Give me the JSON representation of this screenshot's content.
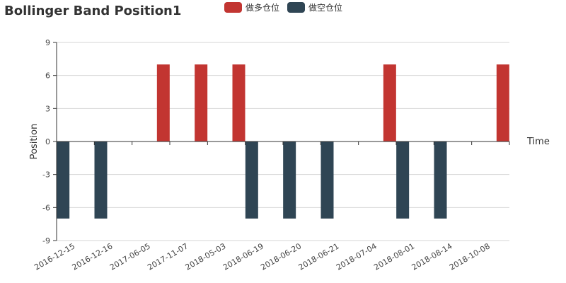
{
  "chart_data": {
    "type": "bar",
    "title": "Bollinger Band Position1",
    "xlabel": "Time",
    "ylabel": "Position",
    "ylim": [
      -9,
      9
    ],
    "yticks": [
      -9,
      -6,
      -3,
      0,
      3,
      6,
      9
    ],
    "grid": true,
    "legend_position": "top-center",
    "categories": [
      "2016-12-15",
      "2016-12-16",
      "2017-06-05",
      "2017-11-07",
      "2018-05-03",
      "2018-06-19",
      "2018-06-20",
      "2018-06-21",
      "2018-07-04",
      "2018-08-01",
      "2018-08-14",
      "2018-10-08"
    ],
    "series": [
      {
        "name": "做多仓位",
        "color": "#c23531",
        "values": [
          0,
          0,
          7,
          7,
          7,
          0,
          0,
          0,
          7,
          0,
          0,
          7
        ]
      },
      {
        "name": "做空仓位",
        "color": "#2f4554",
        "values": [
          -7,
          -7,
          0,
          0,
          0,
          -7,
          -7,
          -7,
          0,
          -7,
          -7,
          0
        ]
      }
    ]
  }
}
